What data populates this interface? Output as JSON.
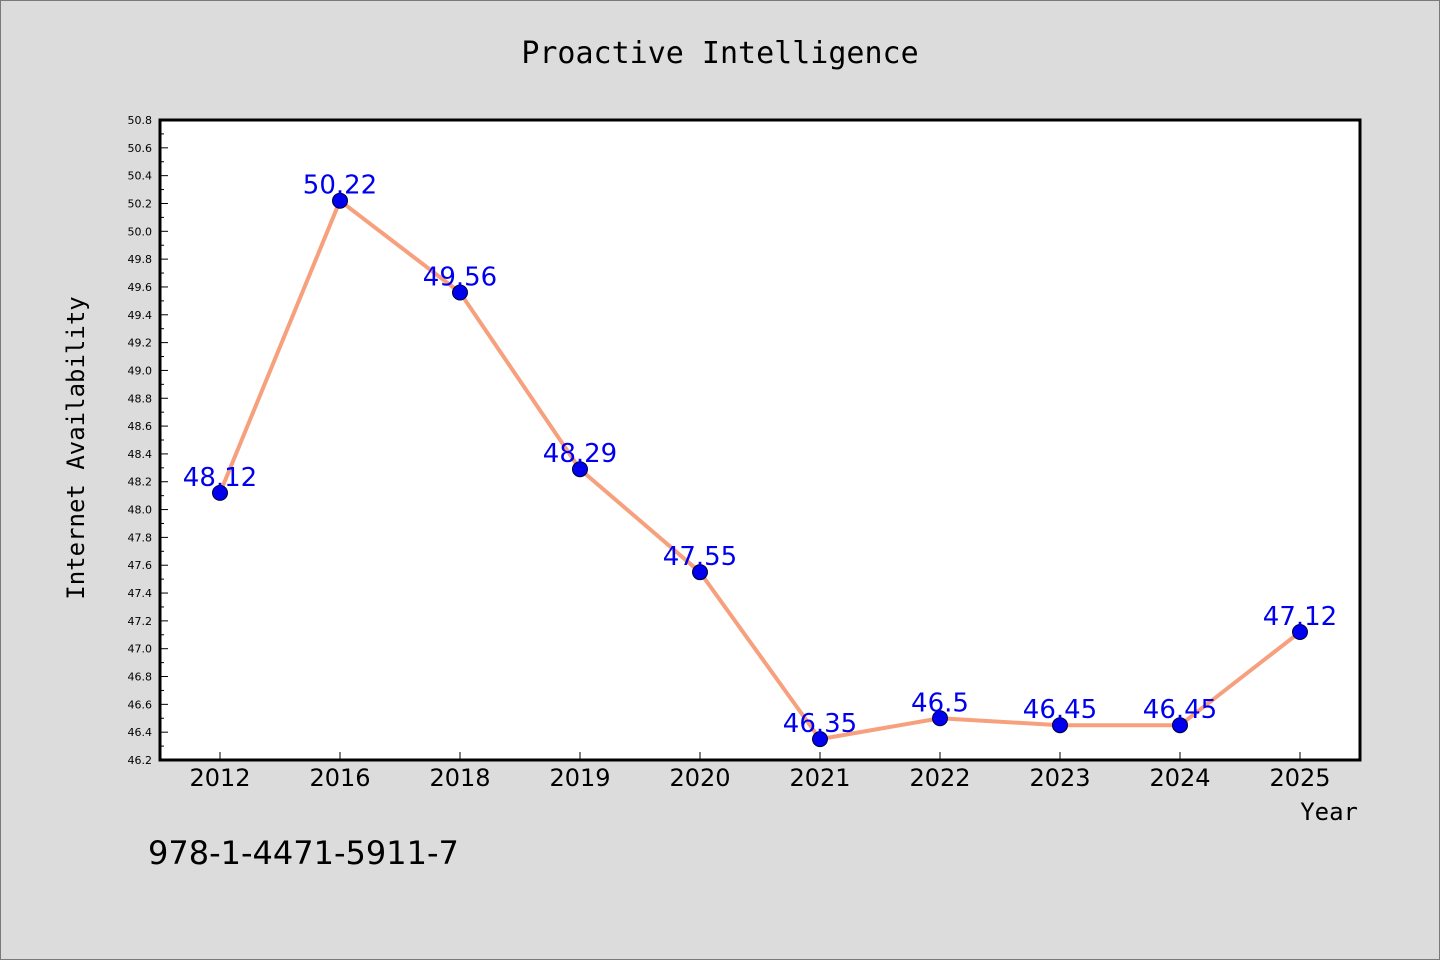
{
  "chart_data": {
    "type": "line",
    "title": "Proactive Intelligence",
    "xlabel": "Year",
    "ylabel": "Internet Availability",
    "categories": [
      "2012",
      "2016",
      "2018",
      "2019",
      "2020",
      "2021",
      "2022",
      "2023",
      "2024",
      "2025"
    ],
    "series": [
      {
        "values": [
          48.12,
          50.22,
          49.56,
          48.29,
          47.55,
          46.35,
          46.5,
          46.45,
          46.45,
          47.12
        ],
        "data_labels": [
          "48.12",
          "50.22",
          "49.56",
          "48.29",
          "47.55",
          "46.35",
          "46.5",
          "46.45",
          "46.45",
          "47.12"
        ],
        "line_color": "#f7a07d",
        "marker_color": "#0000ee",
        "label_color": "#0000ee"
      }
    ],
    "ylim": [
      46.2,
      50.8
    ],
    "yticks": [
      46.2,
      46.4,
      46.6,
      46.8,
      47.0,
      47.2,
      47.4,
      47.6,
      47.8,
      48.0,
      48.2,
      48.4,
      48.6,
      48.8,
      49.0,
      49.2,
      49.4,
      49.6,
      49.8,
      50.0,
      50.2,
      50.4,
      50.6,
      50.8
    ],
    "ytick_labels": [
      "46.2",
      "46.4",
      "46.6",
      "46.8",
      "47.0",
      "47.2",
      "47.4",
      "47.6",
      "47.8",
      "48.0",
      "48.2",
      "48.4",
      "48.6",
      "48.8",
      "49.0",
      "49.2",
      "49.4",
      "49.6",
      "49.8",
      "50.0",
      "50.2",
      "50.4",
      "50.6",
      "50.8"
    ],
    "grid": false,
    "legend": "none"
  },
  "footer": {
    "code": "978-1-4471-5911-7"
  },
  "colors": {
    "background": "#dcdcdc",
    "plot_background": "#ffffff",
    "axis": "#000000"
  }
}
